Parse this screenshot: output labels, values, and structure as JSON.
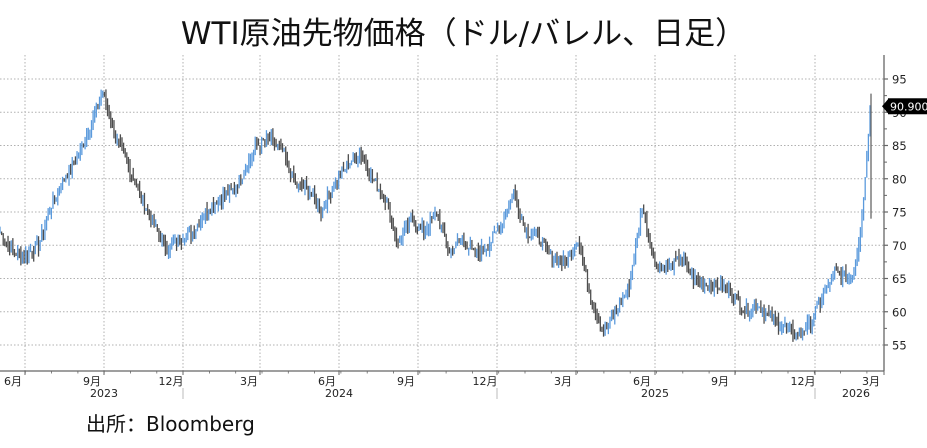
{
  "title": "WTI原油先物価格（ドル/バレル、日足）",
  "source": "出所：Bloomberg",
  "colors": {
    "up_bar": "#4a90d9",
    "down_bar": "#3a3a3a",
    "grid": "#b0b0b0",
    "axis": "#666666",
    "last_label_bg": "#000000",
    "last_label_fg": "#ffffff"
  },
  "chart_data": {
    "type": "line",
    "subtype": "daily OHLC bars",
    "title": "WTI原油先物価格（ドル/バレル、日足）",
    "xlabel": "",
    "ylabel": "ドル/バレル",
    "ylim": [
      52,
      98
    ],
    "y_ticks": [
      55,
      60,
      65,
      70,
      75,
      80,
      85,
      90,
      95
    ],
    "grid": true,
    "y_axis_position": "right",
    "last_value_label": "90.900",
    "x_ticks": [
      {
        "label": "6月",
        "year": ""
      },
      {
        "label": "9月",
        "year": "2023"
      },
      {
        "label": "12月",
        "year": ""
      },
      {
        "label": "3月",
        "year": ""
      },
      {
        "label": "6月",
        "year": "2024"
      },
      {
        "label": "9月",
        "year": ""
      },
      {
        "label": "12月",
        "year": ""
      },
      {
        "label": "3月",
        "year": ""
      },
      {
        "label": "6月",
        "year": "2025"
      },
      {
        "label": "9月",
        "year": ""
      },
      {
        "label": "12月",
        "year": ""
      },
      {
        "label": "3月",
        "year": "2026"
      }
    ],
    "years": [
      "2023",
      "2024",
      "2025",
      "2026"
    ],
    "series": [
      {
        "name": "WTI",
        "x": [
          "2023-05",
          "2023-06",
          "2023-06b",
          "2023-07",
          "2023-07b",
          "2023-08",
          "2023-08b",
          "2023-09",
          "2023-09b",
          "2023-10",
          "2023-10b",
          "2023-11",
          "2023-11b",
          "2023-12",
          "2023-12b",
          "2024-01",
          "2024-01b",
          "2024-02",
          "2024-02b",
          "2024-03",
          "2024-03b",
          "2024-04",
          "2024-04b",
          "2024-05",
          "2024-05b",
          "2024-06",
          "2024-06b",
          "2024-07",
          "2024-07b",
          "2024-08",
          "2024-08b",
          "2024-09",
          "2024-09b",
          "2024-10",
          "2024-10b",
          "2024-11",
          "2024-11b",
          "2024-12",
          "2024-12b",
          "2025-01",
          "2025-01b",
          "2025-02",
          "2025-02b",
          "2025-03",
          "2025-03b",
          "2025-04",
          "2025-04b",
          "2025-05",
          "2025-05b",
          "2025-06",
          "2025-06b",
          "2025-07",
          "2025-07b",
          "2025-08",
          "2025-08b",
          "2025-09",
          "2025-09b",
          "2025-10",
          "2025-10b",
          "2025-11",
          "2025-11b",
          "2025-12",
          "2025-12b",
          "2026-01",
          "2026-01b",
          "2026-02",
          "2026-02b",
          "2026-03"
        ],
        "values": [
          72,
          69,
          68.5,
          70,
          76,
          80,
          83,
          88,
          93,
          86,
          82,
          77,
          73,
          69.5,
          71,
          72,
          75,
          77,
          78,
          81,
          85,
          86,
          84,
          79,
          78.5,
          75,
          79,
          82,
          84,
          80,
          77,
          70,
          74,
          72,
          75,
          69,
          71,
          68.5,
          70,
          73,
          78,
          72,
          71,
          68,
          67.5,
          71,
          62,
          57,
          60,
          64,
          76,
          67,
          66.5,
          68,
          65,
          64,
          64,
          63,
          60,
          61,
          59,
          58,
          56.5,
          58,
          62,
          66,
          65,
          90.9
        ]
      }
    ]
  }
}
